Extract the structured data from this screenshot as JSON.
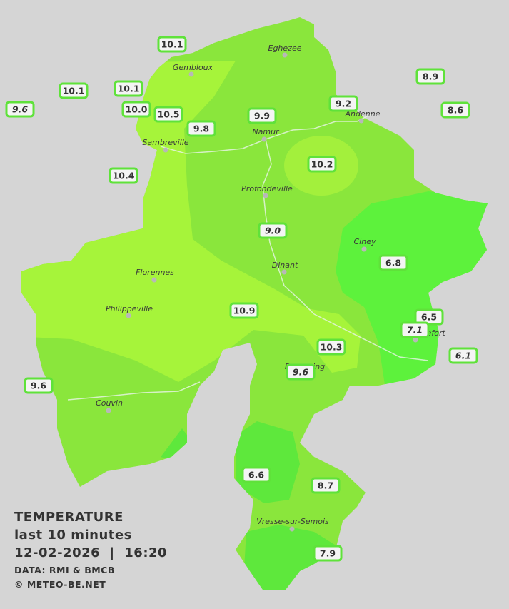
{
  "map": {
    "stations": [
      {
        "label": "10.1"
      },
      {
        "label": "10.1"
      },
      {
        "label": "10.1"
      },
      {
        "label": "9.6",
        "italic": true
      },
      {
        "label": "10.0"
      },
      {
        "label": "10.5"
      },
      {
        "label": "9.8"
      },
      {
        "label": "9.9"
      },
      {
        "label": "9.2"
      },
      {
        "label": "8.9"
      },
      {
        "label": "8.6"
      },
      {
        "label": "10.2"
      },
      {
        "label": "10.4"
      },
      {
        "label": "9.0",
        "italic": true
      },
      {
        "label": "6.8"
      },
      {
        "label": "10.9"
      },
      {
        "label": "6.5"
      },
      {
        "label": "7.1",
        "italic": true
      },
      {
        "label": "6.1",
        "italic": true
      },
      {
        "label": "10.3"
      },
      {
        "label": "9.6",
        "italic": true
      },
      {
        "label": "9.6"
      },
      {
        "label": "6.6"
      },
      {
        "label": "8.7"
      },
      {
        "label": "7.9"
      }
    ],
    "towns": [
      "Eghezee",
      "Gembloux",
      "Andenne",
      "Namur",
      "Sambreville",
      "Profondeville",
      "Ciney",
      "Dinant",
      "Florennes",
      "Philippeville",
      "Rochefort",
      "Beauraing",
      "Couvin",
      "Vresse-sur-Semois"
    ],
    "legend": {
      "title": "TEMPERATURE",
      "subtitle": "last 10 minutes",
      "datetime": "12-02-2026  |  16:20",
      "source": "DATA: RMI & BMCB",
      "credit": "© METEO-BE.NET"
    }
  }
}
